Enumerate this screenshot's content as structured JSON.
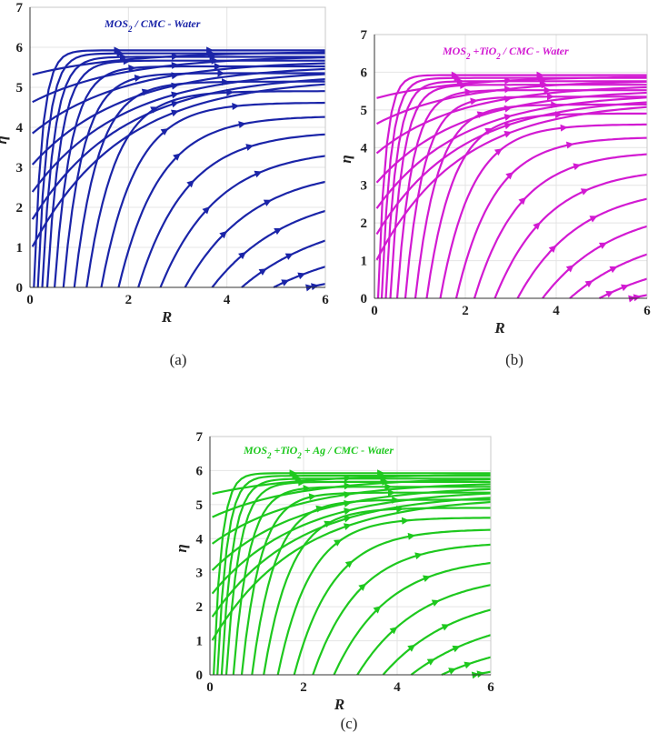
{
  "chart_data": [
    {
      "type": "streamline",
      "title_main": "MOS",
      "title_sub": "2",
      "title_rest": " / CMC - Water",
      "color": "#1a24a8",
      "xlabel": "R",
      "ylabel": "η",
      "xlim": [
        0,
        6
      ],
      "ylim": [
        0,
        7
      ],
      "xticks": [
        "0",
        "2",
        "4",
        "6"
      ],
      "yticks": [
        "0",
        "1",
        "2",
        "3",
        "4",
        "5",
        "6",
        "7"
      ],
      "flow_region_top": 6,
      "streamline_starts": [
        0.08,
        0.16,
        0.25,
        0.35,
        0.5,
        0.68,
        0.9,
        1.15,
        1.45,
        1.8,
        2.2,
        2.65,
        3.15,
        3.7,
        4.3,
        4.95,
        5.65
      ],
      "right_edge_values": [
        0.5,
        0.75,
        1.0,
        1.25,
        1.5,
        1.8,
        2.1,
        2.45,
        2.8,
        3.2,
        3.6,
        4.05,
        4.5,
        4.95,
        5.45,
        5.9
      ],
      "grid": true,
      "caption": "(a)"
    },
    {
      "type": "streamline",
      "title_main": "MOS",
      "title_sub": "2",
      "title_rest": " +TiO",
      "title_sub2": "2",
      "title_rest2": " / CMC - Water",
      "color": "#d21ad2",
      "xlabel": "R",
      "ylabel": "η",
      "xlim": [
        0,
        6
      ],
      "ylim": [
        0,
        7
      ],
      "xticks": [
        "0",
        "2",
        "4",
        "6"
      ],
      "yticks": [
        "0",
        "1",
        "2",
        "3",
        "4",
        "5",
        "6",
        "7"
      ],
      "flow_region_top": 6,
      "grid": true,
      "caption": "(b)"
    },
    {
      "type": "streamline",
      "title_main": "MOS",
      "title_sub": "2",
      "title_rest": " +TiO",
      "title_sub2": "2",
      "title_rest2": " + Ag / CMC - Water",
      "color": "#1ec81e",
      "xlabel": "R",
      "ylabel": "η",
      "xlim": [
        0,
        6
      ],
      "ylim": [
        0,
        7
      ],
      "xticks": [
        "0",
        "2",
        "4",
        "6"
      ],
      "yticks": [
        "0",
        "1",
        "2",
        "3",
        "4",
        "5",
        "6",
        "7"
      ],
      "flow_region_top": 6,
      "grid": true,
      "caption": "(c)"
    }
  ]
}
